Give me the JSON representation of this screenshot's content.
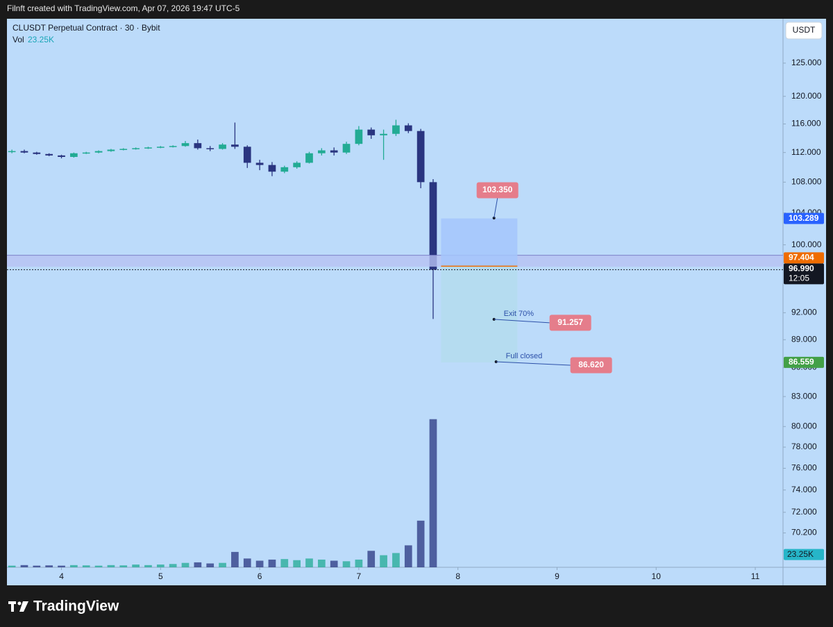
{
  "header": "Filnft created with TradingView.com, Apr 07, 2026 19:47 UTC-5",
  "footer_logo": "TradingView",
  "chart_data": {
    "type": "candlestick",
    "title": "CLUSDT Perpetual Contract · 30 · Bybit",
    "volume_title": "Vol",
    "currency": "USDT",
    "log_scale": true,
    "grid": false,
    "up_color": "#22ab94",
    "down_color": "#2a3580",
    "x": [
      3.5,
      3.625,
      3.75,
      3.875,
      4,
      4.125,
      4.25,
      4.375,
      4.5,
      4.625,
      4.75,
      4.875,
      5,
      5.125,
      5.25,
      5.375,
      5.5,
      5.625,
      5.75,
      5.875,
      6,
      6.125,
      6.25,
      6.375,
      6.5,
      6.625,
      6.75,
      6.875,
      7,
      7.125,
      7.25,
      7.375,
      7.5,
      7.625,
      7.75
    ],
    "open": [
      112.1,
      112.2,
      112.0,
      111.8,
      111.6,
      111.4,
      111.9,
      112.0,
      112.2,
      112.4,
      112.5,
      112.6,
      112.7,
      112.8,
      112.9,
      113.3,
      112.6,
      112.5,
      113.1,
      112.8,
      110.6,
      110.3,
      109.4,
      110.0,
      110.6,
      111.9,
      112.3,
      112.0,
      113.2,
      115.2,
      114.4,
      114.6,
      115.8,
      115.0,
      108.0
    ],
    "high": [
      112.4,
      112.4,
      112.1,
      111.9,
      111.7,
      112.0,
      112.1,
      112.3,
      112.5,
      112.6,
      112.7,
      112.8,
      112.9,
      113.0,
      113.6,
      113.8,
      112.9,
      113.3,
      116.2,
      113.0,
      111.0,
      110.7,
      110.2,
      110.8,
      112.1,
      112.6,
      112.7,
      113.5,
      115.7,
      115.5,
      115.2,
      116.6,
      116.1,
      115.3,
      108.4
    ],
    "low": [
      111.9,
      111.9,
      111.7,
      111.5,
      111.2,
      111.3,
      111.8,
      111.9,
      112.1,
      112.3,
      112.4,
      112.5,
      112.6,
      112.7,
      112.8,
      112.4,
      112.2,
      112.4,
      112.5,
      109.9,
      109.6,
      108.8,
      109.2,
      109.8,
      110.5,
      111.6,
      111.6,
      111.8,
      113.0,
      113.9,
      111.0,
      114.3,
      114.7,
      107.2,
      91.3
    ],
    "close": [
      112.2,
      112.0,
      111.8,
      111.6,
      111.4,
      111.9,
      112.0,
      112.2,
      112.4,
      112.5,
      112.6,
      112.7,
      112.8,
      112.9,
      113.3,
      112.6,
      112.5,
      113.1,
      112.8,
      110.6,
      110.3,
      109.4,
      110.0,
      110.6,
      111.9,
      112.3,
      112.0,
      113.2,
      115.2,
      114.4,
      114.6,
      115.8,
      115.0,
      108.0,
      96.99
    ],
    "volume": [
      3000,
      4000,
      3000,
      3500,
      3000,
      4000,
      3500,
      3000,
      4000,
      3500,
      5000,
      4000,
      5000,
      6000,
      8000,
      9000,
      7000,
      8000,
      28000,
      16000,
      12000,
      14000,
      15000,
      13000,
      16000,
      14000,
      12000,
      11000,
      14000,
      30000,
      22000,
      26000,
      40000,
      85000,
      270000
    ],
    "volume_ylim": [
      0,
      1000000
    ],
    "volume_tag": {
      "value": 23250,
      "label": "23.25K",
      "color": "#26b5c8"
    },
    "xlim": [
      3.45,
      11.28
    ],
    "xticks": [
      4,
      5,
      6,
      7,
      8,
      9,
      10,
      11
    ],
    "ylim": [
      67.3,
      132
    ],
    "yticks": [
      {
        "value": 125,
        "label": "125.000"
      },
      {
        "value": 120,
        "label": "120.000"
      },
      {
        "value": 116,
        "label": "116.000"
      },
      {
        "value": 112,
        "label": "112.000"
      },
      {
        "value": 108,
        "label": "108.000"
      },
      {
        "value": 104,
        "label": "104.000"
      },
      {
        "value": 100,
        "label": "100.000"
      },
      {
        "value": 92,
        "label": "92.000"
      },
      {
        "value": 89,
        "label": "89.000"
      },
      {
        "value": 86,
        "label": "86.000"
      },
      {
        "value": 83,
        "label": "83.000"
      },
      {
        "value": 80,
        "label": "80.000"
      },
      {
        "value": 78,
        "label": "78.000"
      },
      {
        "value": 76,
        "label": "76.000"
      },
      {
        "value": 74,
        "label": "74.000"
      },
      {
        "value": 72,
        "label": "72.000"
      },
      {
        "value": 70.2,
        "label": "70.200"
      }
    ],
    "price_tags": [
      {
        "value": 103.289,
        "label": "103.289",
        "color": "#2962ff"
      },
      {
        "value": 97.404,
        "label": "97.404",
        "color": "#ef6c00"
      },
      {
        "value": 96.99,
        "label": "96.990",
        "sublabel": "12:05",
        "color": "#131722"
      },
      {
        "value": 86.559,
        "label": "86.559",
        "color": "#43a047"
      }
    ],
    "zone": {
      "low": 97.35,
      "high": 98.73,
      "color": "#b7c2f2"
    },
    "position": {
      "start": 7.83,
      "end": 8.6,
      "stop_color": "#a4c5fb",
      "target_color": "#b4dced"
    },
    "callouts": [
      {
        "x": 8.364,
        "price": {
          "value": 103.35,
          "label": "103.350"
        }
      },
      {
        "x": 8.364,
        "note": "Exit 70%",
        "price": {
          "value": 91.257,
          "label": "91.257"
        }
      },
      {
        "x": 8.385,
        "note": "Full closed",
        "price": {
          "value": 86.62,
          "label": "86.620"
        }
      }
    ]
  }
}
